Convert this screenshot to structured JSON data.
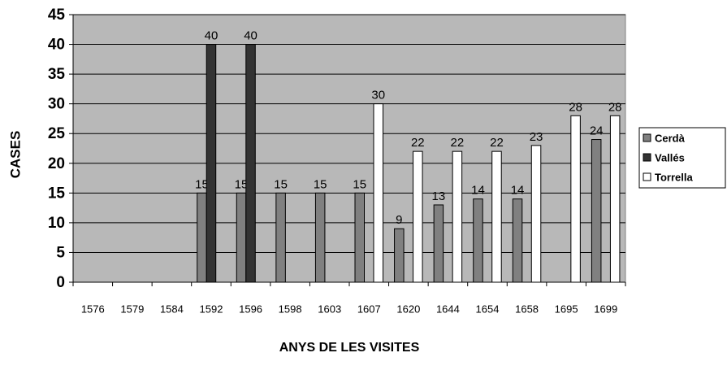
{
  "chart_data": {
    "type": "bar",
    "xlabel": "ANYS DE LES VISITES",
    "ylabel": "CASES",
    "categories": [
      "1576",
      "1579",
      "1584",
      "1592",
      "1596",
      "1598",
      "1603",
      "1607",
      "1620",
      "1644",
      "1654",
      "1658",
      "1695",
      "1699"
    ],
    "series": [
      {
        "name": "Cerdà",
        "color": "#808080",
        "values": [
          null,
          null,
          null,
          15,
          15,
          15,
          15,
          15,
          9,
          13,
          14,
          14,
          null,
          24
        ]
      },
      {
        "name": "Vallés",
        "color": "#333333",
        "values": [
          null,
          null,
          null,
          40,
          40,
          null,
          null,
          null,
          null,
          null,
          null,
          null,
          null,
          null
        ]
      },
      {
        "name": "Torrella",
        "color": "#ffffff",
        "values": [
          null,
          null,
          null,
          null,
          null,
          null,
          null,
          30,
          22,
          22,
          22,
          23,
          28,
          28
        ]
      }
    ],
    "ylim": [
      0,
      45
    ],
    "yticks": [
      0,
      5,
      10,
      15,
      20,
      25,
      30,
      35,
      40,
      45
    ],
    "grid": true,
    "legend": "right"
  }
}
